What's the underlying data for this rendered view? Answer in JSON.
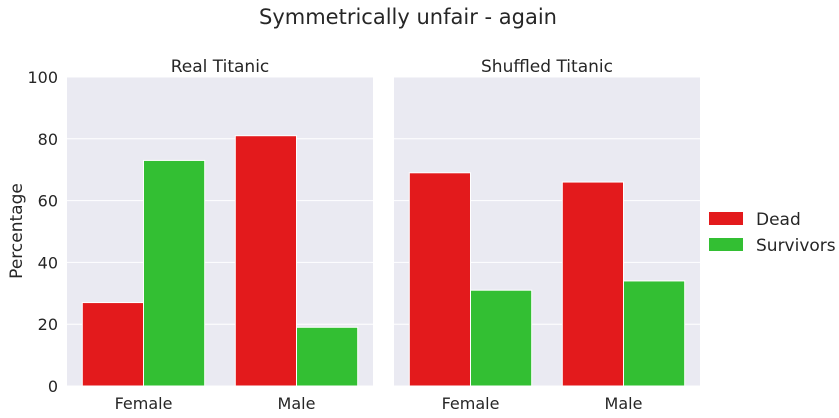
{
  "chart_data": {
    "type": "bar",
    "suptitle": "Symmetrically unfair - again",
    "ylabel": "Percentage",
    "ylim": [
      0,
      100
    ],
    "yticks": [
      0,
      20,
      40,
      60,
      80,
      100
    ],
    "categories": [
      "Female",
      "Male"
    ],
    "grid": true,
    "legend_position": "right",
    "legend": [
      {
        "name": "Dead",
        "color": "#e31a1c"
      },
      {
        "name": "Survivors",
        "color": "#33bf33"
      }
    ],
    "panels": [
      {
        "title": "Real Titanic",
        "series": [
          {
            "name": "Dead",
            "values": [
              27,
              81
            ]
          },
          {
            "name": "Survivors",
            "values": [
              73,
              19
            ]
          }
        ]
      },
      {
        "title": "Shuffled Titanic",
        "series": [
          {
            "name": "Dead",
            "values": [
              69,
              66
            ]
          },
          {
            "name": "Survivors",
            "values": [
              31,
              34
            ]
          }
        ]
      }
    ]
  },
  "colors": {
    "panel_background": "#eaeaf2",
    "grid": "#ffffff",
    "text": "#262626"
  }
}
